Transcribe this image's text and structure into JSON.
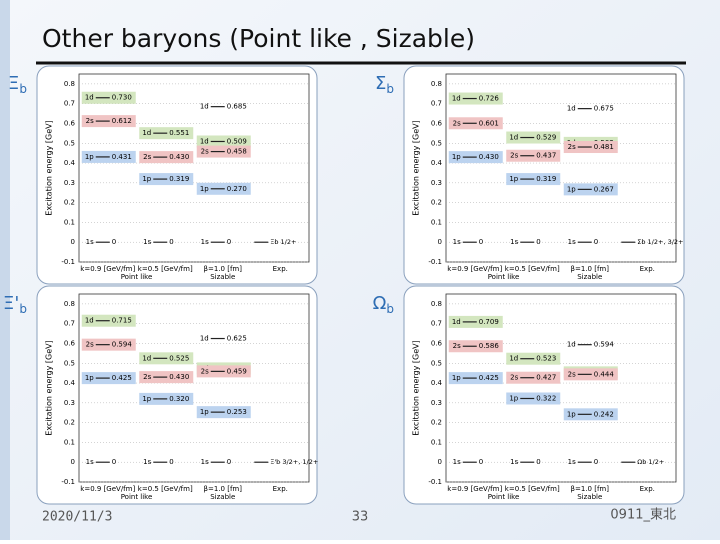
{
  "header": {
    "title": "Other baryons (Point like , Sizable)"
  },
  "axis": {
    "label": "Excitation energy [GeV]",
    "ylim": [
      -0.1,
      0.85
    ],
    "yticks": [
      -0.1,
      0,
      0.1,
      0.2,
      0.3,
      0.4,
      0.5,
      0.6,
      0.7,
      0.8
    ],
    "columns": [
      "k=0.9 [GeV/fm]",
      "k=0.5 [GeV/fm]",
      "β=1.0 [fm]",
      "Exp."
    ],
    "groups": [
      "Point like",
      "Sizable"
    ]
  },
  "panels": [
    {
      "name": "Ξ",
      "sub": "b",
      "columns": [
        [
          {
            "state": "1d",
            "value": 0.73,
            "label": "0.730",
            "color": "#d3e6bf"
          },
          {
            "state": "2s",
            "value": 0.612,
            "color": "#f0c4c4"
          },
          {
            "state": "1p",
            "value": 0.431,
            "color": "#bcd3ef"
          },
          {
            "state": "1s",
            "value": 0
          }
        ],
        [
          {
            "state": "1d",
            "value": 0.551,
            "color": "#d3e6bf"
          },
          {
            "state": "2s",
            "value": 0.43,
            "label": "0.430",
            "color": "#f0c4c4"
          },
          {
            "state": "1p",
            "value": 0.319,
            "color": "#bcd3ef"
          },
          {
            "state": "1s",
            "value": 0
          }
        ],
        [
          {
            "state": "1d",
            "value": 0.685
          },
          {
            "state": "1d",
            "value": 0.509,
            "color": "#d3e6bf"
          },
          {
            "state": "2s",
            "value": 0.458,
            "color": "#f0c4c4"
          },
          {
            "state": "1p",
            "value": 0.27,
            "label": "0.270",
            "color": "#bcd3ef"
          },
          {
            "state": "1s",
            "value": 0
          }
        ]
      ],
      "exp": [
        {
          "label": "Ξb 1/2+",
          "value": 0
        }
      ]
    },
    {
      "name": "Σ",
      "sub": "b",
      "columns": [
        [
          {
            "state": "1d",
            "value": 0.726,
            "color": "#d3e6bf"
          },
          {
            "state": "2s",
            "value": 0.601,
            "color": "#f0c4c4"
          },
          {
            "state": "1p",
            "value": 0.43,
            "label": "0.430",
            "color": "#bcd3ef"
          },
          {
            "state": "1s",
            "value": 0
          }
        ],
        [
          {
            "state": "1d",
            "value": 0.529,
            "color": "#d3e6bf"
          },
          {
            "state": "2s",
            "value": 0.437,
            "color": "#f0c4c4"
          },
          {
            "state": "1p",
            "value": 0.319,
            "color": "#bcd3ef"
          },
          {
            "state": "1s",
            "value": 0
          }
        ],
        [
          {
            "state": "1d",
            "value": 0.675
          },
          {
            "state": "1d",
            "value": 0.502,
            "color": "#d3e6bf"
          },
          {
            "state": "2s",
            "value": 0.481,
            "color": "#f0c4c4"
          },
          {
            "state": "1p",
            "value": 0.267,
            "color": "#bcd3ef"
          },
          {
            "state": "1s",
            "value": 0
          }
        ]
      ],
      "exp": [
        {
          "label": "Σb 1/2+, 3/2+",
          "value": 0
        }
      ]
    },
    {
      "name": "Ξ'",
      "sub": "b",
      "columns": [
        [
          {
            "state": "1d",
            "value": 0.715,
            "color": "#d3e6bf"
          },
          {
            "state": "2s",
            "value": 0.594,
            "color": "#f0c4c4"
          },
          {
            "state": "1p",
            "value": 0.425,
            "color": "#bcd3ef"
          },
          {
            "state": "1s",
            "value": 0
          }
        ],
        [
          {
            "state": "1d",
            "value": 0.525,
            "color": "#d3e6bf"
          },
          {
            "state": "2s",
            "value": 0.43,
            "label": "0.430",
            "color": "#f0c4c4"
          },
          {
            "state": "1p",
            "value": 0.32,
            "label": "0.320",
            "color": "#bcd3ef"
          },
          {
            "state": "1s",
            "value": 0
          }
        ],
        [
          {
            "state": "1d",
            "value": 0.625
          },
          {
            "state": "1d",
            "value": 0.474,
            "color": "#d3e6bf"
          },
          {
            "state": "2s",
            "value": 0.459,
            "color": "#f0c4c4"
          },
          {
            "state": "1p",
            "value": 0.253,
            "color": "#bcd3ef"
          },
          {
            "state": "1s",
            "value": 0
          }
        ]
      ],
      "exp": [
        {
          "label": "Ξ'b 3/2+, 1/2+",
          "value": 0
        }
      ]
    },
    {
      "name": "Ω",
      "sub": "b",
      "columns": [
        [
          {
            "state": "1d",
            "value": 0.709,
            "color": "#d3e6bf"
          },
          {
            "state": "2s",
            "value": 0.586,
            "color": "#f0c4c4"
          },
          {
            "state": "1p",
            "value": 0.425,
            "color": "#bcd3ef"
          },
          {
            "state": "1s",
            "value": 0
          }
        ],
        [
          {
            "state": "1d",
            "value": 0.523,
            "color": "#d3e6bf"
          },
          {
            "state": "2s",
            "value": 0.427,
            "color": "#f0c4c4"
          },
          {
            "state": "1p",
            "value": 0.322,
            "color": "#bcd3ef"
          },
          {
            "state": "1s",
            "value": 0
          }
        ],
        [
          {
            "state": "1d",
            "value": 0.594
          },
          {
            "state": "1d",
            "value": 0.454,
            "color": "#d3e6bf"
          },
          {
            "state": "2s",
            "value": 0.444,
            "color": "#f0c4c4"
          },
          {
            "state": "1p",
            "value": 0.242,
            "color": "#bcd3ef"
          },
          {
            "state": "1s",
            "value": 0
          }
        ]
      ],
      "exp": [
        {
          "label": "Ωb 1/2+",
          "value": 0
        }
      ]
    }
  ],
  "footer": {
    "date": "2020/11/3",
    "page": "33",
    "tag": "0911_東北"
  }
}
